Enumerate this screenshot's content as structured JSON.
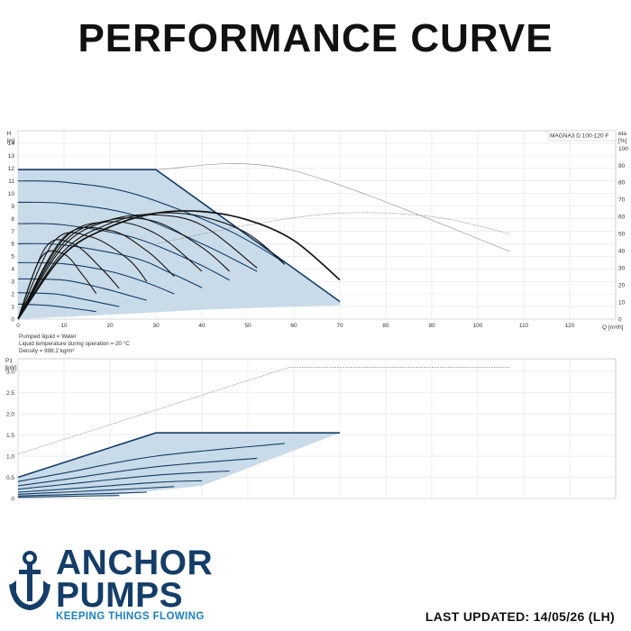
{
  "page": {
    "title": "PERFORMANCE CURVE",
    "footer_updated": "LAST UPDATED: 14/05/26 (LH)"
  },
  "brand": {
    "line1": "ANCHOR",
    "line2": "PUMPS",
    "tagline": "KEEPING THINGS FLOWING",
    "icon": "anchor-icon",
    "primary_color": "#143d68",
    "accent_color": "#1a7fc1"
  },
  "notes": {
    "liquid": "Pumped liquid = Water",
    "temperature": "Liquid temperature during operation = 20 °C",
    "density": "Density = 998.2 kg/m³"
  },
  "chart_data": [
    {
      "type": "line",
      "model": "MAGNA3 D 100-120 F",
      "ylabel": "H\n[m]",
      "xlabel": "Q [m³/h]",
      "y2label": "eta\n[%]",
      "xlim": [
        0,
        130
      ],
      "ylim": [
        0,
        15
      ],
      "y2lim": [
        0,
        100
      ],
      "xticks": [
        0,
        10,
        20,
        30,
        40,
        50,
        60,
        70,
        80,
        90,
        100,
        110,
        120
      ],
      "yticks": [
        0,
        1,
        2,
        3,
        4,
        5,
        6,
        7,
        8,
        9,
        10,
        11,
        12,
        13,
        14
      ],
      "y2ticks": [
        0,
        10,
        20,
        30,
        40,
        50,
        60,
        70,
        80,
        90,
        100
      ],
      "grid": true,
      "operating_envelope": {
        "x": [
          0,
          30,
          70,
          70,
          60,
          40,
          20,
          0
        ],
        "y": [
          11.9,
          11.9,
          1.4,
          1.1,
          1.0,
          0.75,
          0.35,
          0
        ]
      },
      "speed_curves_head": [
        {
          "x": [
            0,
            30,
            70
          ],
          "y": [
            11.9,
            11.9,
            1.4
          ]
        },
        {
          "x": [
            0,
            10,
            25,
            45,
            58
          ],
          "y": [
            11.0,
            10.9,
            10.0,
            7.2,
            4.5
          ]
        },
        {
          "x": [
            0,
            10,
            25,
            40,
            52
          ],
          "y": [
            9.3,
            9.2,
            8.3,
            6.0,
            3.8
          ]
        },
        {
          "x": [
            0,
            10,
            25,
            38,
            46
          ],
          "y": [
            7.6,
            7.5,
            6.5,
            4.6,
            3.1
          ]
        },
        {
          "x": [
            0,
            10,
            25,
            33,
            40
          ],
          "y": [
            6.0,
            5.9,
            4.9,
            3.7,
            2.5
          ]
        },
        {
          "x": [
            0,
            10,
            20,
            28,
            34
          ],
          "y": [
            4.5,
            4.4,
            3.8,
            2.9,
            2.0
          ]
        },
        {
          "x": [
            0,
            10,
            18,
            24,
            28
          ],
          "y": [
            3.2,
            3.1,
            2.5,
            1.9,
            1.5
          ]
        },
        {
          "x": [
            0,
            8,
            14,
            18,
            22
          ],
          "y": [
            2.1,
            2.0,
            1.6,
            1.3,
            1.0
          ]
        },
        {
          "x": [
            0,
            6,
            11,
            15,
            17
          ],
          "y": [
            1.2,
            1.1,
            0.9,
            0.7,
            0.6
          ]
        }
      ],
      "efficiency_curves": [
        {
          "x": [
            0,
            10,
            20,
            30,
            40,
            50,
            60,
            70
          ],
          "eta": [
            0,
            38,
            54,
            62,
            63,
            58,
            46,
            23
          ]
        },
        {
          "x": [
            0,
            10,
            20,
            30,
            40,
            50,
            58
          ],
          "eta": [
            0,
            40,
            56,
            62,
            60,
            50,
            32
          ]
        },
        {
          "x": [
            0,
            10,
            20,
            30,
            40,
            52
          ],
          "eta": [
            0,
            43,
            58,
            61,
            55,
            30
          ]
        },
        {
          "x": [
            0,
            10,
            20,
            30,
            40,
            46
          ],
          "eta": [
            0,
            45,
            58,
            57,
            42,
            28
          ]
        },
        {
          "x": [
            0,
            10,
            20,
            30,
            40
          ],
          "eta": [
            0,
            47,
            57,
            50,
            28
          ]
        },
        {
          "x": [
            0,
            10,
            20,
            28,
            34
          ],
          "eta": [
            0,
            48,
            52,
            40,
            25
          ]
        },
        {
          "x": [
            0,
            8,
            16,
            24,
            28
          ],
          "eta": [
            0,
            46,
            48,
            35,
            22
          ]
        },
        {
          "x": [
            0,
            6,
            12,
            18,
            22
          ],
          "eta": [
            0,
            42,
            44,
            30,
            18
          ]
        },
        {
          "x": [
            0,
            5,
            10,
            14,
            17
          ],
          "eta": [
            0,
            36,
            38,
            26,
            15
          ]
        }
      ],
      "reference_head_curve": {
        "x": [
          30,
          59,
          107
        ],
        "y": [
          11.9,
          11.9,
          5.4
        ]
      },
      "reference_eta_curve": {
        "x": [
          30,
          50,
          70,
          90,
          107
        ],
        "eta": [
          44,
          55,
          62,
          60,
          50
        ]
      }
    },
    {
      "type": "line",
      "ylabel": "P1\n[kW]",
      "xlim": [
        0,
        130
      ],
      "ylim": [
        0,
        3.3
      ],
      "yticks": [
        0,
        0.5,
        1.0,
        1.5,
        2.0,
        2.5,
        3.0
      ],
      "ytick_labels": [
        "0",
        "0.5",
        "1.0",
        "1.5",
        "2.0",
        "2.5",
        "3.0"
      ],
      "grid": true,
      "operating_envelope": {
        "x": [
          0,
          30,
          70,
          40,
          20,
          0
        ],
        "y": [
          0.5,
          1.55,
          1.55,
          0.3,
          0.07,
          0
        ]
      },
      "speed_curves_power": [
        {
          "x": [
            0,
            30,
            70
          ],
          "y": [
            0.5,
            1.55,
            1.55
          ]
        },
        {
          "x": [
            0,
            10,
            30,
            58
          ],
          "y": [
            0.4,
            0.6,
            1.0,
            1.3
          ]
        },
        {
          "x": [
            0,
            10,
            30,
            52
          ],
          "y": [
            0.3,
            0.45,
            0.75,
            0.95
          ]
        },
        {
          "x": [
            0,
            10,
            30,
            46
          ],
          "y": [
            0.22,
            0.33,
            0.55,
            0.65
          ]
        },
        {
          "x": [
            0,
            10,
            30,
            40
          ],
          "y": [
            0.15,
            0.22,
            0.38,
            0.42
          ]
        },
        {
          "x": [
            0,
            10,
            20,
            34
          ],
          "y": [
            0.1,
            0.15,
            0.2,
            0.28
          ]
        },
        {
          "x": [
            0,
            10,
            20,
            28
          ],
          "y": [
            0.06,
            0.09,
            0.12,
            0.15
          ]
        },
        {
          "x": [
            0,
            10,
            22
          ],
          "y": [
            0.03,
            0.05,
            0.07
          ]
        }
      ],
      "reference_power_curve": {
        "x": [
          0,
          59,
          107
        ],
        "y": [
          1.05,
          3.1,
          3.1
        ]
      }
    }
  ]
}
